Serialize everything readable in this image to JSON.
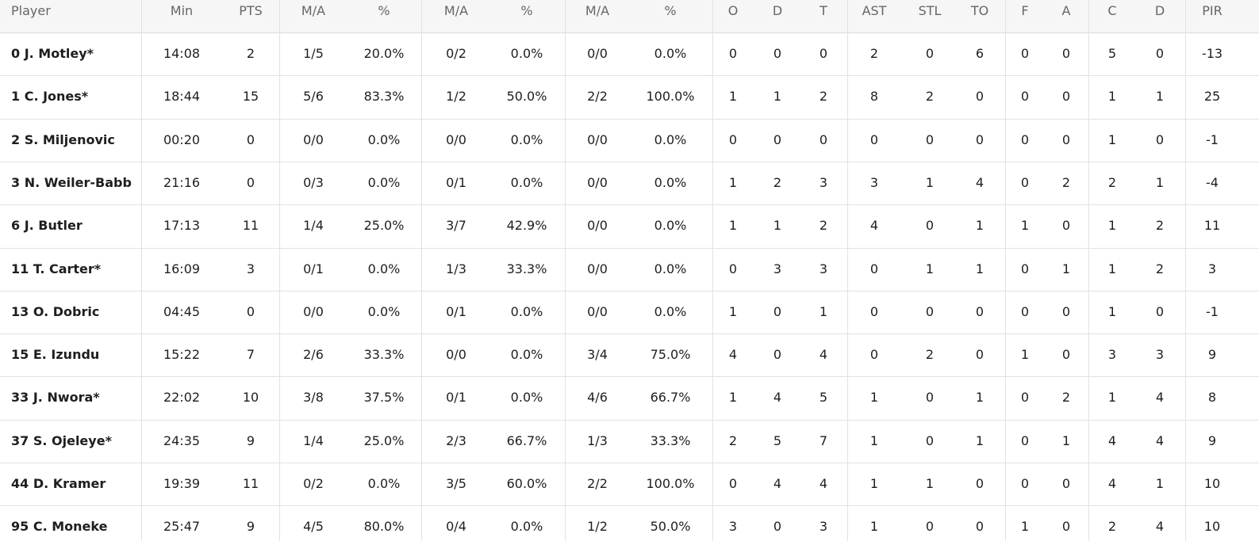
{
  "table": {
    "header": [
      "Player",
      "Min",
      "PTS",
      "M/A",
      "%",
      "M/A",
      "%",
      "M/A",
      "%",
      "O",
      "D",
      "T",
      "AST",
      "STL",
      "TO",
      "F",
      "A",
      "C",
      "D",
      "PIR"
    ],
    "rows": [
      [
        "0 J. Motley*",
        "14:08",
        2,
        "1/5",
        "20.0%",
        "0/2",
        "0.0%",
        "0/0",
        "0.0%",
        0,
        0,
        0,
        2,
        0,
        6,
        0,
        0,
        5,
        0,
        -13
      ],
      [
        "1 C. Jones*",
        "18:44",
        15,
        "5/6",
        "83.3%",
        "1/2",
        "50.0%",
        "2/2",
        "100.0%",
        1,
        1,
        2,
        8,
        2,
        0,
        0,
        0,
        1,
        1,
        25
      ],
      [
        "2 S. Miljenovic",
        "00:20",
        0,
        "0/0",
        "0.0%",
        "0/0",
        "0.0%",
        "0/0",
        "0.0%",
        0,
        0,
        0,
        0,
        0,
        0,
        0,
        0,
        1,
        0,
        -1
      ],
      [
        "3 N. Weiler-Babb",
        "21:16",
        0,
        "0/3",
        "0.0%",
        "0/1",
        "0.0%",
        "0/0",
        "0.0%",
        1,
        2,
        3,
        3,
        1,
        4,
        0,
        2,
        2,
        1,
        -4
      ],
      [
        "6 J. Butler",
        "17:13",
        11,
        "1/4",
        "25.0%",
        "3/7",
        "42.9%",
        "0/0",
        "0.0%",
        1,
        1,
        2,
        4,
        0,
        1,
        1,
        0,
        1,
        2,
        11
      ],
      [
        "11 T. Carter*",
        "16:09",
        3,
        "0/1",
        "0.0%",
        "1/3",
        "33.3%",
        "0/0",
        "0.0%",
        0,
        3,
        3,
        0,
        1,
        1,
        0,
        1,
        1,
        2,
        3
      ],
      [
        "13 O. Dobric",
        "04:45",
        0,
        "0/0",
        "0.0%",
        "0/1",
        "0.0%",
        "0/0",
        "0.0%",
        1,
        0,
        1,
        0,
        0,
        0,
        0,
        0,
        1,
        0,
        -1
      ],
      [
        "15 E. Izundu",
        "15:22",
        7,
        "2/6",
        "33.3%",
        "0/0",
        "0.0%",
        "3/4",
        "75.0%",
        4,
        0,
        4,
        0,
        2,
        0,
        1,
        0,
        3,
        3,
        9
      ],
      [
        "33 J. Nwora*",
        "22:02",
        10,
        "3/8",
        "37.5%",
        "0/1",
        "0.0%",
        "4/6",
        "66.7%",
        1,
        4,
        5,
        1,
        0,
        1,
        0,
        2,
        1,
        4,
        8
      ],
      [
        "37 S. Ojeleye*",
        "24:35",
        9,
        "1/4",
        "25.0%",
        "2/3",
        "66.7%",
        "1/3",
        "33.3%",
        2,
        5,
        7,
        1,
        0,
        1,
        0,
        1,
        4,
        4,
        9
      ],
      [
        "44 D. Kramer",
        "19:39",
        11,
        "0/2",
        "0.0%",
        "3/5",
        "60.0%",
        "2/2",
        "100.0%",
        0,
        4,
        4,
        1,
        1,
        0,
        0,
        0,
        4,
        1,
        10
      ],
      [
        "95 C. Moneke",
        "25:47",
        9,
        "4/5",
        "80.0%",
        "0/4",
        "0.0%",
        "1/2",
        "50.0%",
        3,
        0,
        3,
        1,
        0,
        0,
        1,
        0,
        2,
        4,
        10
      ]
    ]
  }
}
